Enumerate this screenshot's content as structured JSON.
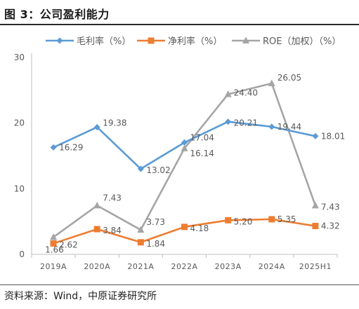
{
  "figure": {
    "title": "图 3：公司盈利能力",
    "source": "资料来源：Wind，中原证券研究所"
  },
  "chart_data": {
    "type": "line",
    "categories": [
      "2019A",
      "2020A",
      "2021A",
      "2022A",
      "2023A",
      "2024A",
      "2025H1"
    ],
    "ylim": [
      0,
      30
    ],
    "yticks": [
      "0",
      "10",
      "20",
      "30"
    ],
    "grid": false,
    "legend_position": "top",
    "series": [
      {
        "name": "毛利率（%）",
        "color": "#5b9bd5",
        "marker": "diamond",
        "values": [
          16.29,
          19.38,
          13.02,
          17.04,
          20.21,
          19.44,
          18.01
        ],
        "labels": [
          "16.29",
          "19.38",
          "13.02",
          "17.04",
          "20.21",
          "19.44",
          "18.01"
        ]
      },
      {
        "name": "净利率（%）",
        "color": "#ed7d31",
        "marker": "square",
        "values": [
          1.66,
          3.84,
          1.84,
          4.18,
          5.2,
          5.35,
          4.32
        ],
        "labels": [
          "1.66",
          "3.84",
          "1.84",
          "4.18",
          "5.20",
          "5.35",
          "4.32"
        ]
      },
      {
        "name": "ROE（加权）（%）",
        "color": "#a5a5a5",
        "marker": "triangle",
        "values": [
          2.62,
          7.43,
          3.73,
          16.14,
          24.4,
          26.05,
          7.43
        ],
        "labels": [
          "2.62",
          "7.43",
          "3.73",
          "16.14",
          "24.40",
          "26.05",
          "7.43"
        ]
      }
    ]
  }
}
